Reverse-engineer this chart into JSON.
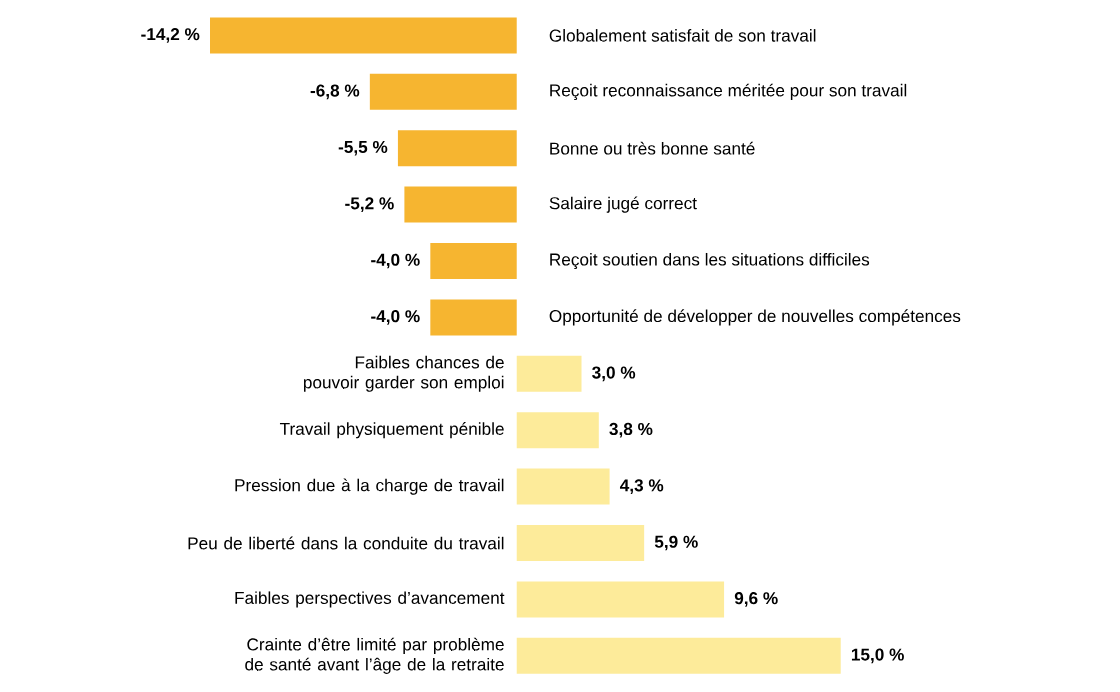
{
  "chart_data": {
    "type": "bar",
    "orientation": "horizontal",
    "tick_labels": false,
    "categories": [
      "Globalement satisfait de son travail",
      "Reçoit reconnaissance méritée pour son travail",
      "Bonne ou très bonne santé",
      "Salaire jugé correct",
      "Reçoit soutien dans les situations difficiles",
      "Opportunité de développer de nouvelles compétences",
      "Faibles chances de pouvoir garder son emploi",
      "Travail physiquement pénible",
      "Pression due à la charge de travail",
      "Peu de liberté dans la conduite du travail",
      "Faibles perspectives d’avancement",
      "Crainte d’être limité par problème de santé avant l’âge de la retraite"
    ],
    "values": [
      -14.2,
      -6.8,
      -5.5,
      -5.2,
      -4.0,
      -4.0,
      3.0,
      3.8,
      4.3,
      5.9,
      9.6,
      15.0
    ],
    "value_labels": [
      "-14,2 %",
      "-6,8 %",
      "-5,5 %",
      "-5,2 %",
      "-4,0 %",
      "-4,0 %",
      "3,0 %",
      "3,8 %",
      "4,3 %",
      "5,9 %",
      "9,6 %",
      "15,0 %"
    ],
    "colors": [
      "#f6b530",
      "#f6b530",
      "#f6b530",
      "#f6b530",
      "#f6b530",
      "#f6b530",
      "#fdeb9a",
      "#fdeb9a",
      "#fdeb9a",
      "#fdeb9a",
      "#fdeb9a",
      "#fdeb9a"
    ]
  }
}
